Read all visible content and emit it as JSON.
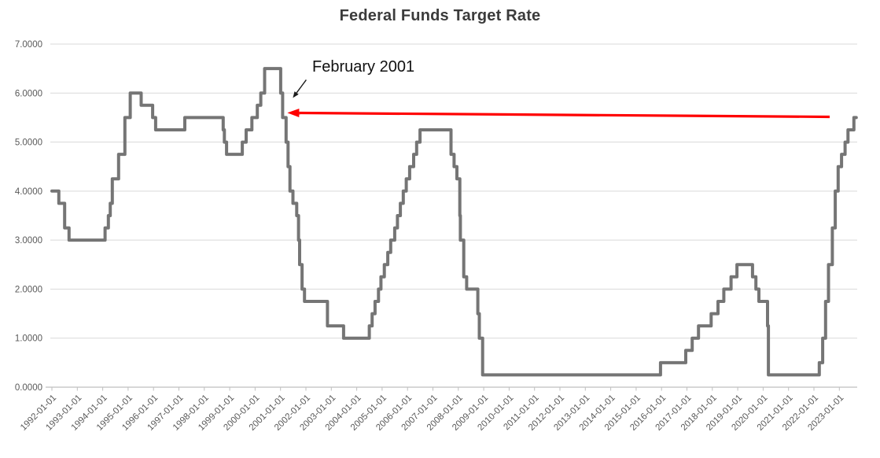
{
  "chart_data": {
    "type": "line",
    "subtype": "step-after",
    "title": "Federal Funds Target Rate",
    "xlabel": "",
    "ylabel": "",
    "ylim": [
      0.0,
      7.0
    ],
    "y_ticks": [
      0,
      1,
      2,
      3,
      4,
      5,
      6,
      7
    ],
    "y_tick_decimals": 4,
    "grid": "horizontal",
    "legend": "none",
    "x_tick_labels": [
      "1992-01-01",
      "1993-01-01",
      "1994-01-01",
      "1995-01-01",
      "1996-01-01",
      "1997-01-01",
      "1998-01-01",
      "1999-01-01",
      "2000-01-01",
      "2001-01-01",
      "2002-01-01",
      "2003-01-01",
      "2004-01-01",
      "2005-01-01",
      "2006-01-01",
      "2007-01-01",
      "2008-01-01",
      "2009-01-01",
      "2010-01-01",
      "2011-01-01",
      "2012-01-01",
      "2013-01-01",
      "2014-01-01",
      "2015-01-01",
      "2016-01-01",
      "2017-01-01",
      "2018-01-01",
      "2019-01-01",
      "2020-01-01",
      "2021-01-01",
      "2022-01-01",
      "2023-01-01"
    ],
    "series": [
      {
        "name": "Federal Funds Target Rate",
        "points": [
          [
            "1992-01-01",
            4.0
          ],
          [
            "1992-04-09",
            3.75
          ],
          [
            "1992-07-02",
            3.25
          ],
          [
            "1992-09-04",
            3.0
          ],
          [
            "1994-02-04",
            3.25
          ],
          [
            "1994-03-22",
            3.5
          ],
          [
            "1994-04-18",
            3.75
          ],
          [
            "1994-05-17",
            4.25
          ],
          [
            "1994-08-16",
            4.75
          ],
          [
            "1994-11-15",
            5.5
          ],
          [
            "1995-02-01",
            6.0
          ],
          [
            "1995-07-06",
            5.75
          ],
          [
            "1995-12-19",
            5.5
          ],
          [
            "1996-01-31",
            5.25
          ],
          [
            "1997-03-25",
            5.5
          ],
          [
            "1998-09-29",
            5.25
          ],
          [
            "1998-10-15",
            5.0
          ],
          [
            "1998-11-17",
            4.75
          ],
          [
            "1999-06-30",
            5.0
          ],
          [
            "1999-08-24",
            5.25
          ],
          [
            "1999-11-16",
            5.5
          ],
          [
            "2000-02-02",
            5.75
          ],
          [
            "2000-03-21",
            6.0
          ],
          [
            "2000-05-16",
            6.5
          ],
          [
            "2001-01-03",
            6.0
          ],
          [
            "2001-01-31",
            5.5
          ],
          [
            "2001-03-20",
            5.0
          ],
          [
            "2001-04-18",
            4.5
          ],
          [
            "2001-05-15",
            4.0
          ],
          [
            "2001-06-27",
            3.75
          ],
          [
            "2001-08-21",
            3.5
          ],
          [
            "2001-09-17",
            3.0
          ],
          [
            "2001-10-02",
            2.5
          ],
          [
            "2001-11-06",
            2.0
          ],
          [
            "2001-12-11",
            1.75
          ],
          [
            "2002-11-06",
            1.25
          ],
          [
            "2003-06-25",
            1.0
          ],
          [
            "2004-06-30",
            1.25
          ],
          [
            "2004-08-10",
            1.5
          ],
          [
            "2004-09-21",
            1.75
          ],
          [
            "2004-11-10",
            2.0
          ],
          [
            "2004-12-14",
            2.25
          ],
          [
            "2005-02-02",
            2.5
          ],
          [
            "2005-03-22",
            2.75
          ],
          [
            "2005-05-03",
            3.0
          ],
          [
            "2005-06-30",
            3.25
          ],
          [
            "2005-08-09",
            3.5
          ],
          [
            "2005-09-20",
            3.75
          ],
          [
            "2005-11-01",
            4.0
          ],
          [
            "2005-12-13",
            4.25
          ],
          [
            "2006-01-31",
            4.5
          ],
          [
            "2006-03-28",
            4.75
          ],
          [
            "2006-05-10",
            5.0
          ],
          [
            "2006-06-29",
            5.25
          ],
          [
            "2007-09-18",
            4.75
          ],
          [
            "2007-10-31",
            4.5
          ],
          [
            "2007-12-11",
            4.25
          ],
          [
            "2008-01-22",
            3.5
          ],
          [
            "2008-01-30",
            3.0
          ],
          [
            "2008-03-18",
            2.25
          ],
          [
            "2008-04-30",
            2.0
          ],
          [
            "2008-10-08",
            1.5
          ],
          [
            "2008-10-29",
            1.0
          ],
          [
            "2008-12-16",
            0.25
          ],
          [
            "2015-12-17",
            0.5
          ],
          [
            "2016-12-15",
            0.75
          ],
          [
            "2017-03-16",
            1.0
          ],
          [
            "2017-06-15",
            1.25
          ],
          [
            "2017-12-14",
            1.5
          ],
          [
            "2018-03-22",
            1.75
          ],
          [
            "2018-06-14",
            2.0
          ],
          [
            "2018-09-27",
            2.25
          ],
          [
            "2018-12-20",
            2.5
          ],
          [
            "2019-08-01",
            2.25
          ],
          [
            "2019-09-19",
            2.0
          ],
          [
            "2019-10-31",
            1.75
          ],
          [
            "2020-03-03",
            1.25
          ],
          [
            "2020-03-16",
            0.25
          ],
          [
            "2022-03-17",
            0.5
          ],
          [
            "2022-05-05",
            1.0
          ],
          [
            "2022-06-16",
            1.75
          ],
          [
            "2022-07-28",
            2.5
          ],
          [
            "2022-09-22",
            3.25
          ],
          [
            "2022-11-03",
            4.0
          ],
          [
            "2022-12-15",
            4.5
          ],
          [
            "2023-02-02",
            4.75
          ],
          [
            "2023-03-23",
            5.0
          ],
          [
            "2023-05-04",
            5.25
          ],
          [
            "2023-07-27",
            5.5
          ],
          [
            "2023-09-01",
            5.5
          ]
        ]
      }
    ],
    "annotation": {
      "label": "February 2001",
      "points_to_date": "2001-02-01",
      "points_to_value": 5.5
    },
    "colors": {
      "line": "#757575",
      "gridline": "#d9d9d9",
      "axis": "#bfbfbf",
      "tick_label": "#595959",
      "title": "#3b3b3b",
      "annotation_arrow": "#ff0000",
      "annotation_pointer": "#1a1a1a",
      "annotation_text": "#111111",
      "background": "#ffffff"
    }
  }
}
